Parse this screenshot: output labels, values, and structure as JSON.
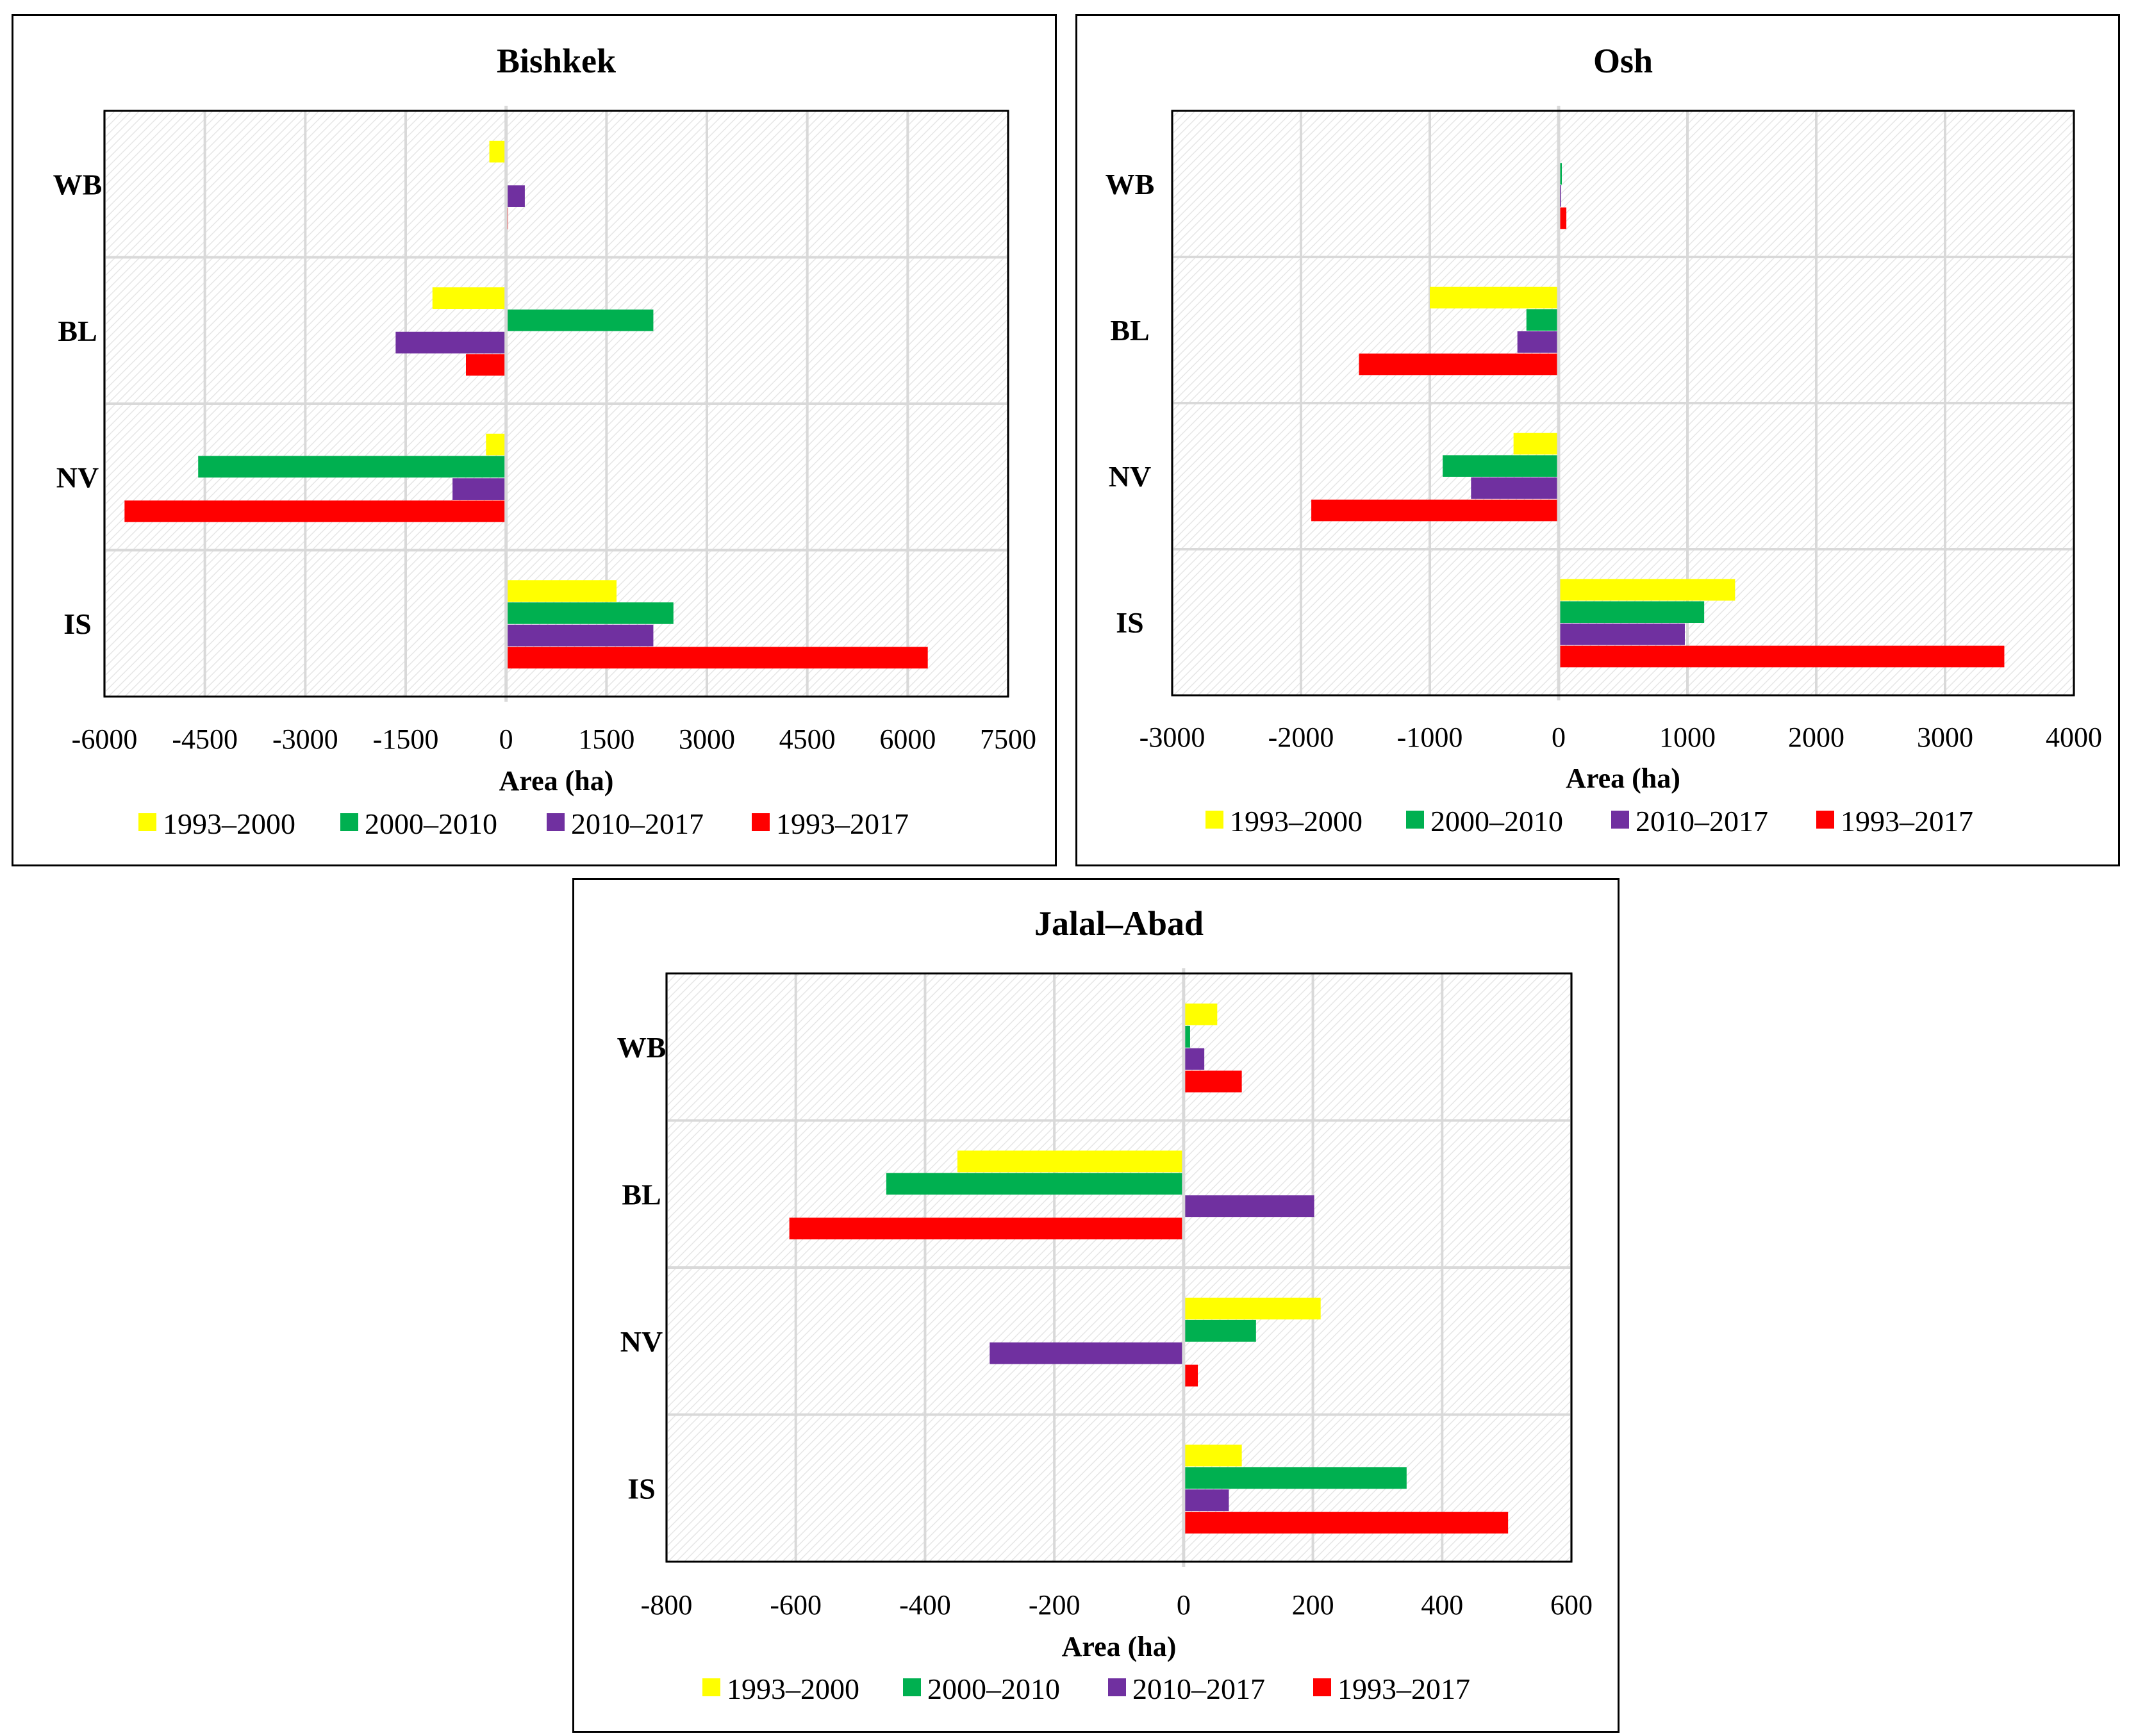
{
  "colors": {
    "1993–2000": "#FFFF00",
    "2000–2010": "#00B050",
    "2010–2017": "#7030A0",
    "1993–2017": "#FF0000",
    "grid": "#d9d9d9",
    "plot_border": "#000000"
  },
  "chart_data": [
    {
      "type": "bar",
      "orientation": "horizontal",
      "title": "Bishkek",
      "xlabel": "Area (ha)",
      "categories": [
        "WB",
        "BL",
        "NV",
        "IS"
      ],
      "xlim": [
        -6000,
        7500
      ],
      "xticks": [
        -6000,
        -4500,
        -3000,
        -1500,
        0,
        1500,
        3000,
        4500,
        6000,
        7500
      ],
      "series": [
        {
          "name": "1993–2000",
          "values": [
            -250,
            -1100,
            -300,
            1650
          ]
        },
        {
          "name": "2000–2010",
          "values": [
            -20,
            2200,
            -4600,
            2500
          ]
        },
        {
          "name": "2010–2017",
          "values": [
            280,
            -1650,
            -800,
            2200
          ]
        },
        {
          "name": "1993–2017",
          "values": [
            30,
            -600,
            -5700,
            6300
          ]
        }
      ],
      "legend": "bottom"
    },
    {
      "type": "bar",
      "orientation": "horizontal",
      "title": "Osh",
      "xlabel": "Area (ha)",
      "categories": [
        "WB",
        "BL",
        "NV",
        "IS"
      ],
      "xlim": [
        -3000,
        4000
      ],
      "xticks": [
        -3000,
        -2000,
        -1000,
        0,
        1000,
        2000,
        3000,
        4000
      ],
      "series": [
        {
          "name": "1993–2000",
          "values": [
            10,
            -1000,
            -350,
            1370
          ]
        },
        {
          "name": "2000–2010",
          "values": [
            25,
            -250,
            -900,
            1130
          ]
        },
        {
          "name": "2010–2017",
          "values": [
            20,
            -320,
            -680,
            980
          ]
        },
        {
          "name": "1993–2017",
          "values": [
            60,
            -1550,
            -1920,
            3460
          ]
        }
      ],
      "legend": "bottom"
    },
    {
      "type": "bar",
      "orientation": "horizontal",
      "title": "Jalal–Abad",
      "xlabel": "Area (ha)",
      "categories": [
        "WB",
        "BL",
        "NV",
        "IS"
      ],
      "xlim": [
        -800,
        600
      ],
      "xticks": [
        -800,
        -600,
        -400,
        -200,
        0,
        200,
        400,
        600
      ],
      "series": [
        {
          "name": "1993–2000",
          "values": [
            52,
            -350,
            212,
            90
          ]
        },
        {
          "name": "2000–2010",
          "values": [
            10,
            -460,
            112,
            345
          ]
        },
        {
          "name": "2010–2017",
          "values": [
            32,
            202,
            -300,
            70
          ]
        },
        {
          "name": "1993–2017",
          "values": [
            90,
            -610,
            22,
            502
          ]
        }
      ],
      "legend": "bottom"
    }
  ]
}
